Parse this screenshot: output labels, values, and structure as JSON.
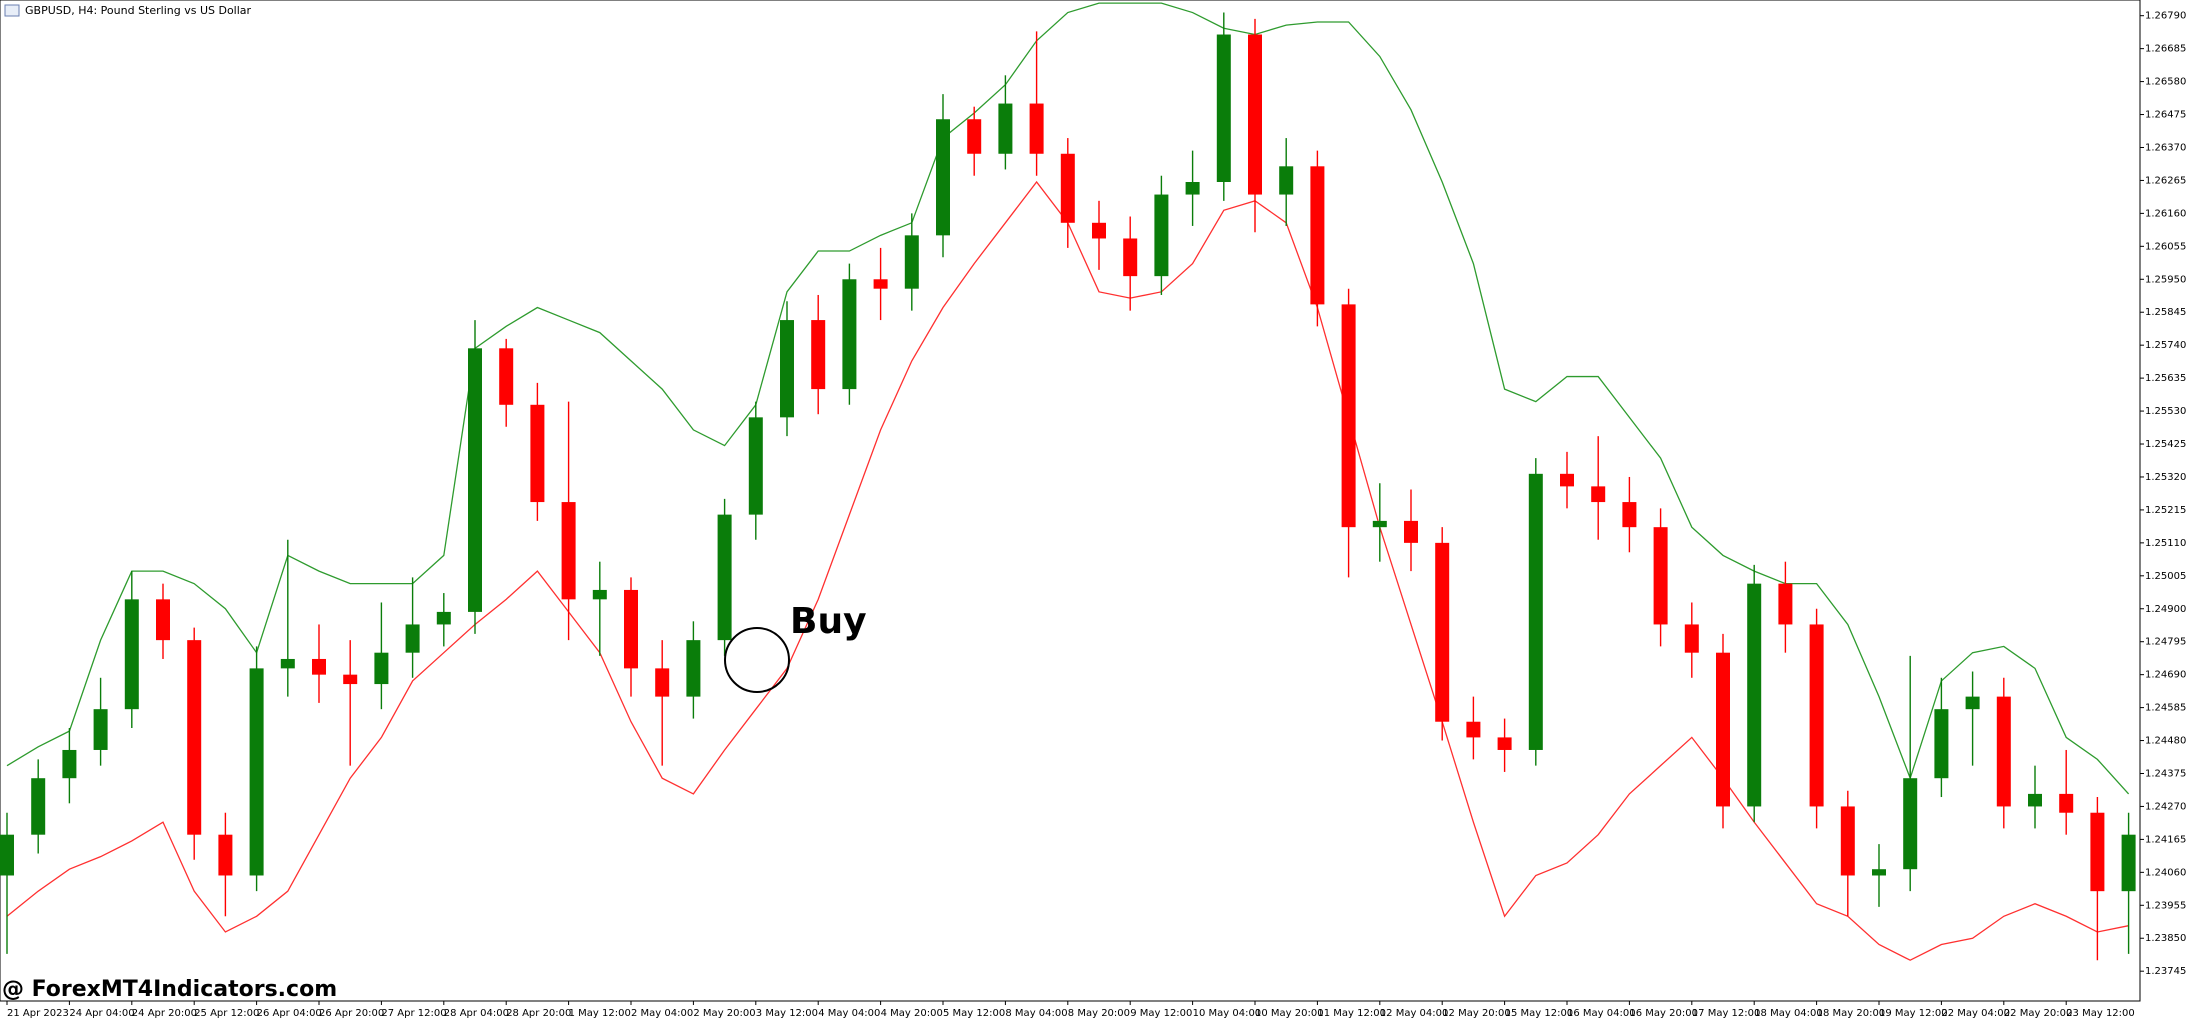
{
  "chart_data": {
    "type": "candlestick",
    "title": "GBPUSD, H4:  Pound Sterling vs US Dollar",
    "watermark": "@ ForexMT4Indicators.com",
    "annotation": "Buy",
    "up_color": "#0a7d0a",
    "down_color": "#ff0000",
    "categories": [
      "21 Apr 2023",
      null,
      "24 Apr 04:00",
      null,
      "24 Apr 20:00",
      null,
      "25 Apr 12:00",
      null,
      "26 Apr 04:00",
      null,
      "26 Apr 20:00",
      null,
      "27 Apr 12:00",
      null,
      "28 Apr 04:00",
      null,
      "28 Apr 20:00",
      null,
      "1 May 12:00",
      null,
      "2 May 04:00",
      null,
      "2 May 20:00",
      null,
      "3 May 12:00",
      null,
      "4 May 04:00",
      null,
      "4 May 20:00",
      null,
      "5 May 12:00",
      null,
      "8 May 04:00",
      null,
      "8 May 20:00",
      null,
      "9 May 12:00",
      null,
      "10 May 04:00",
      null,
      "10 May 20:00",
      null,
      "11 May 12:00",
      null,
      "12 May 04:00",
      null,
      "12 May 20:00",
      null,
      "15 May 12:00",
      null,
      "16 May 04:00",
      null,
      "16 May 20:00",
      null,
      "17 May 12:00",
      null,
      "18 May 04:00",
      null,
      "18 May 20:00",
      null,
      "19 May 12:00",
      null,
      "22 May 04:00",
      null,
      "22 May 20:00",
      null,
      "23 May 12:00",
      null,
      null
    ],
    "open": [
      1.2405,
      1.2418,
      1.2436,
      1.2445,
      1.2458,
      1.2493,
      1.248,
      1.2418,
      1.2405,
      1.2471,
      1.2474,
      1.2469,
      1.2466,
      1.2476,
      1.2485,
      1.2489,
      1.2573,
      1.2555,
      1.2524,
      1.2493,
      1.2496,
      1.2471,
      1.2462,
      1.248,
      1.252,
      1.2551,
      1.2582,
      1.256,
      1.2595,
      1.2592,
      1.2609,
      1.2646,
      1.2635,
      1.2651,
      1.2635,
      1.2613,
      1.2608,
      1.2596,
      1.2622,
      1.2626,
      1.2673,
      1.2622,
      1.2631,
      1.2587,
      1.2516,
      1.2518,
      1.2511,
      1.2454,
      1.2449,
      1.2445,
      1.2533,
      1.2529,
      1.2524,
      1.2516,
      1.2485,
      1.2476,
      1.2427,
      1.2498,
      1.2485,
      1.2427,
      1.2405,
      1.2407,
      1.2436,
      1.2458,
      1.2462,
      1.2427,
      1.2431,
      1.2425,
      1.24
    ],
    "high": [
      1.2425,
      1.2442,
      1.2452,
      1.2468,
      1.2502,
      1.2498,
      1.2484,
      1.2425,
      1.2478,
      1.2512,
      1.2485,
      1.248,
      1.2492,
      1.25,
      1.2495,
      1.2582,
      1.2576,
      1.2562,
      1.2556,
      1.2505,
      1.25,
      1.248,
      1.2486,
      1.2525,
      1.2556,
      1.2588,
      1.259,
      1.26,
      1.2605,
      1.2616,
      1.2654,
      1.265,
      1.266,
      1.2674,
      1.264,
      1.262,
      1.2615,
      1.2628,
      1.2636,
      1.268,
      1.2678,
      1.264,
      1.2636,
      1.2592,
      1.253,
      1.2528,
      1.2516,
      1.2462,
      1.2455,
      1.2538,
      1.254,
      1.2545,
      1.2532,
      1.2522,
      1.2492,
      1.2482,
      1.2504,
      1.2505,
      1.249,
      1.2432,
      1.2415,
      1.2475,
      1.2468,
      1.247,
      1.2468,
      1.244,
      1.2445,
      1.243,
      1.2425
    ],
    "low": [
      1.238,
      1.2412,
      1.2428,
      1.244,
      1.2452,
      1.2474,
      1.241,
      1.2392,
      1.24,
      1.2462,
      1.246,
      1.244,
      1.2458,
      1.2468,
      1.2478,
      1.2482,
      1.2548,
      1.2518,
      1.248,
      1.2475,
      1.2462,
      1.244,
      1.2455,
      1.2475,
      1.2512,
      1.2545,
      1.2552,
      1.2555,
      1.2582,
      1.2585,
      1.2602,
      1.2628,
      1.263,
      1.2628,
      1.2605,
      1.2598,
      1.2585,
      1.259,
      1.2612,
      1.262,
      1.261,
      1.2612,
      1.258,
      1.25,
      1.2505,
      1.2502,
      1.2448,
      1.2442,
      1.2438,
      1.244,
      1.2522,
      1.2512,
      1.2508,
      1.2478,
      1.2468,
      1.242,
      1.2422,
      1.2476,
      1.242,
      1.2392,
      1.2395,
      1.24,
      1.243,
      1.244,
      1.242,
      1.242,
      1.2418,
      1.2378,
      1.238
    ],
    "close": [
      1.2418,
      1.2436,
      1.2445,
      1.2458,
      1.2493,
      1.248,
      1.2418,
      1.2405,
      1.2471,
      1.2474,
      1.2469,
      1.2466,
      1.2476,
      1.2485,
      1.2489,
      1.2573,
      1.2555,
      1.2524,
      1.2493,
      1.2496,
      1.2471,
      1.2462,
      1.248,
      1.252,
      1.2551,
      1.2582,
      1.256,
      1.2595,
      1.2592,
      1.2609,
      1.2646,
      1.2635,
      1.2651,
      1.2635,
      1.2613,
      1.2608,
      1.2596,
      1.2622,
      1.2626,
      1.2673,
      1.2622,
      1.2631,
      1.2587,
      1.2516,
      1.2518,
      1.2511,
      1.2454,
      1.2449,
      1.2445,
      1.2533,
      1.2529,
      1.2524,
      1.2516,
      1.2485,
      1.2476,
      1.2427,
      1.2498,
      1.2485,
      1.2427,
      1.2405,
      1.2407,
      1.2436,
      1.2458,
      1.2462,
      1.2427,
      1.2431,
      1.2425,
      1.24,
      1.2418
    ],
    "series": [
      {
        "color": "#2e9b2e",
        "values": [
          1.244,
          1.2446,
          1.2451,
          1.248,
          1.2502,
          1.2502,
          1.2498,
          1.249,
          1.2476,
          1.2507,
          1.2502,
          1.2498,
          1.2498,
          1.2498,
          1.2507,
          1.2573,
          1.258,
          1.2586,
          1.2582,
          1.2578,
          1.2569,
          1.256,
          1.2547,
          1.2542,
          1.2555,
          1.2591,
          1.2604,
          1.2604,
          1.2609,
          1.2613,
          1.264,
          1.2648,
          1.2657,
          1.2671,
          1.268,
          1.2683,
          1.2683,
          1.2683,
          1.268,
          1.2675,
          1.2673,
          1.2676,
          1.2677,
          1.2677,
          1.2666,
          1.2649,
          1.2626,
          1.26,
          1.256,
          1.2556,
          1.2564,
          1.2564,
          1.2551,
          1.2538,
          1.2516,
          1.2507,
          1.2502,
          1.2498,
          1.2498,
          1.2485,
          1.2462,
          1.2436,
          1.2467,
          1.2476,
          1.2478,
          1.2471,
          1.2449,
          1.2442,
          1.2431
        ]
      },
      {
        "color": "#ff3030",
        "values": [
          1.2392,
          1.24,
          1.2407,
          1.2411,
          1.2416,
          1.2422,
          1.24,
          1.2387,
          1.2392,
          1.24,
          1.2418,
          1.2436,
          1.2449,
          1.2467,
          1.2476,
          1.2485,
          1.2493,
          1.2502,
          1.2489,
          1.2476,
          1.2454,
          1.2436,
          1.2431,
          1.2445,
          1.2458,
          1.2471,
          1.2493,
          1.252,
          1.2547,
          1.2569,
          1.2586,
          1.26,
          1.2613,
          1.2626,
          1.2613,
          1.2591,
          1.2589,
          1.2591,
          1.26,
          1.2617,
          1.262,
          1.2613,
          1.2586,
          1.2551,
          1.2516,
          1.2485,
          1.2454,
          1.2422,
          1.2392,
          1.2405,
          1.2409,
          1.2418,
          1.2431,
          1.244,
          1.2449,
          1.2436,
          1.2422,
          1.2409,
          1.2396,
          1.2392,
          1.2383,
          1.2378,
          1.2383,
          1.2385,
          1.2392,
          1.2396,
          1.2392,
          1.2387,
          1.2389
        ]
      }
    ],
    "ylim": [
      1.2365,
      1.2684
    ],
    "yticks": [
      {
        "value": 1.2679,
        "label": "1.26790"
      },
      1.26685,
      {
        "value": 1.2658,
        "label": "1.26580"
      },
      1.26475,
      {
        "value": 1.2637,
        "label": "1.26370"
      },
      1.26265,
      {
        "value": 1.2616,
        "label": "1.26160"
      },
      1.26055,
      {
        "value": 1.2595,
        "label": "1.25950"
      },
      1.25845,
      {
        "value": 1.2574,
        "label": "1.25740"
      },
      1.25635,
      {
        "value": 1.2553,
        "label": "1.25530"
      },
      1.25425,
      {
        "value": 1.2532,
        "label": "1.25320"
      },
      1.25215,
      {
        "value": 1.2511,
        "label": "1.25110"
      },
      1.25005,
      {
        "value": 1.249,
        "label": "1.24900"
      },
      1.24795,
      {
        "value": 1.2469,
        "label": "1.24690"
      },
      1.24585,
      {
        "value": 1.2448,
        "label": "1.24480"
      },
      1.24375,
      {
        "value": 1.2427,
        "label": "1.24270"
      },
      1.24165,
      {
        "value": 1.2406,
        "label": "1.24060"
      },
      1.23955,
      {
        "value": 1.2385,
        "label": "1.23850"
      },
      1.23745
    ]
  }
}
